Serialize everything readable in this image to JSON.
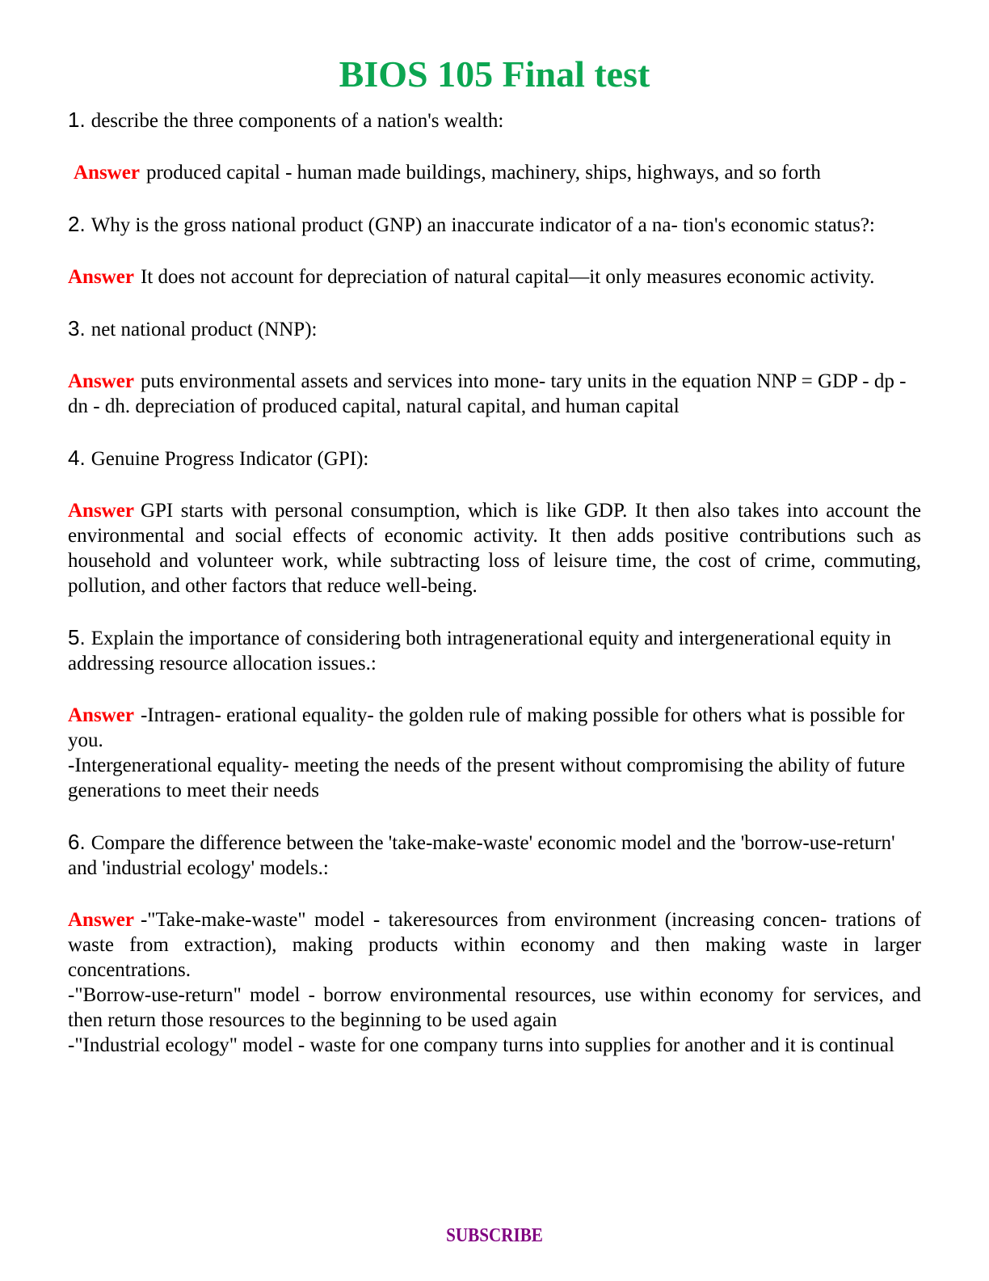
{
  "page": {
    "title": "BIOS 105 Final test"
  },
  "colors": {
    "title_green": "#0ca651",
    "answer_red": "#fe0000",
    "footer_purple": "#800080",
    "text_black": "#000000"
  },
  "qa": [
    {
      "number": "1.",
      "question": "describe the three components of a nation's wealth:",
      "answer_label": "Answer",
      "answer": "produced capital - human made buildings, machinery, ships, highways, and so forth"
    },
    {
      "number": "2.",
      "question": "Why is the gross national product (GNP) an inaccurate indicator of a na- tion's economic status?:",
      "answer_label": "Answer",
      "answer": "It does not account for depreciation of natural capital—it only measures economic activity."
    },
    {
      "number": "3.",
      "question": "net national product (NNP):",
      "answer_label": "Answer",
      "answer": "puts environmental assets and services into mone- tary units in the equation NNP = GDP - dp - dn - dh. depreciation of produced capital, natural capital, and human capital"
    },
    {
      "number": "4.",
      "question": "Genuine Progress Indicator (GPI):",
      "answer_label": "Answer",
      "answer": "GPI starts with personal consumption, which is like GDP. It then also takes into account the environmental and social effects of economic activity. It then adds positive contributions such as household and volunteer work, while subtracting loss of leisure time, the cost of crime, commuting, pollution, and other factors that reduce well-being."
    },
    {
      "number": "5.",
      "question": "Explain the importance of considering both intragenerational equity and intergenerational equity in addressing resource allocation issues.:",
      "answer_label": "Answer",
      "answer": "-Intragen- erational equality- the golden rule of making possible for others what is possible for you.\n-Intergenerational equality- meeting the needs of the present without compromising the ability of future generations to meet their needs"
    },
    {
      "number": "6.",
      "question": "Compare the difference between the 'take-make-waste' economic model and the 'borrow-use-return' and 'industrial ecology' models.:",
      "answer_label": "Answer",
      "answer": "-\"Take-make-waste\" model - takeresources from environment (increasing concen- trations of waste from extraction), making products within economy and then making waste in larger concentrations.\n-\"Borrow-use-return\" model - borrow environmental resources, use within economy for services, and then return those resources to the beginning to be used again\n-\"Industrial ecology\" model - waste for one company turns into supplies for another and it is continual"
    }
  ],
  "footer": {
    "label": "SUBSCRIBE"
  }
}
